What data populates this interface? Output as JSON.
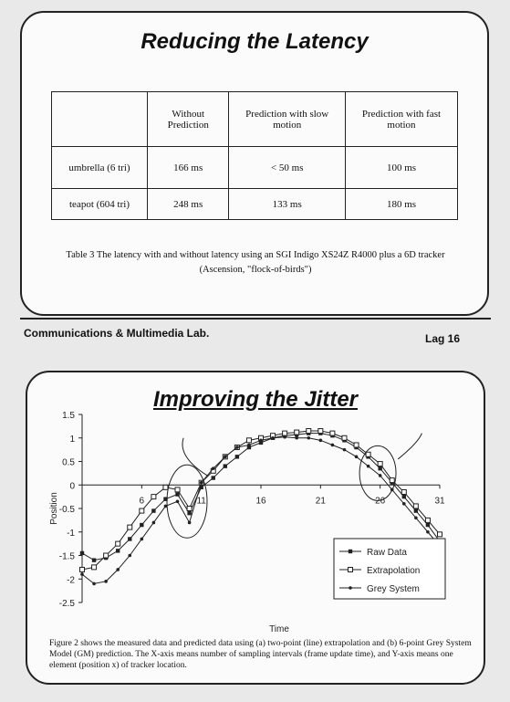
{
  "slide1": {
    "title": "Reducing the Latency",
    "table": {
      "headers": [
        "",
        "Without Prediction",
        "Prediction with slow motion",
        "Prediction with fast motion"
      ],
      "rows": [
        [
          "umbrella (6 tri)",
          "166 ms",
          "< 50 ms",
          "100 ms"
        ],
        [
          "teapot (604 tri)",
          "248 ms",
          "133 ms",
          "180 ms"
        ]
      ]
    },
    "caption": "Table 3 The latency with and without latency using an SGI Indigo XS24Z R4000 plus a 6D tracker (Ascension, \"flock-of-birds\")"
  },
  "footer": {
    "left": "Communications & Multimedia Lab.",
    "right": "Lag 16"
  },
  "slide2": {
    "title": "Improving the Jitter",
    "caption": "Figure 2 shows the measured data and predicted data using (a) two-point (line) extrapolation and (b) 6-point Grey System Model (GM) prediction. The X-axis means number of sampling intervals (frame update time), and Y-axis means one element (position x) of tracker location."
  },
  "chart_data": {
    "type": "line",
    "xlabel": "Time",
    "ylabel": "Position",
    "xlim": [
      1,
      31
    ],
    "ylim": [
      -2.5,
      1.5
    ],
    "xticks": [
      "6",
      "11",
      "16",
      "21",
      "26",
      "31"
    ],
    "yticks": [
      "1.5",
      "1",
      "0.5",
      "0",
      "-0.5",
      "-1",
      "-1.5",
      "-2",
      "-2.5"
    ],
    "legend_position": "bottom-right",
    "x": [
      1,
      2,
      3,
      4,
      5,
      6,
      7,
      8,
      9,
      10,
      11,
      12,
      13,
      14,
      15,
      16,
      17,
      18,
      19,
      20,
      21,
      22,
      23,
      24,
      25,
      26,
      27,
      28,
      29,
      30,
      31
    ],
    "series": [
      {
        "name": "Raw Data",
        "marker": "square-filled",
        "values": [
          -1.45,
          -1.6,
          -1.55,
          -1.4,
          -1.15,
          -0.85,
          -0.55,
          -0.3,
          -0.2,
          -0.6,
          -0.05,
          0.15,
          0.4,
          0.6,
          0.8,
          0.9,
          1.0,
          1.05,
          1.07,
          1.1,
          1.1,
          1.05,
          0.95,
          0.8,
          0.6,
          0.35,
          0.05,
          -0.25,
          -0.55,
          -0.85,
          -1.2
        ]
      },
      {
        "name": "Extrapolation",
        "marker": "square-open",
        "values": [
          -1.8,
          -1.75,
          -1.5,
          -1.25,
          -0.9,
          -0.55,
          -0.25,
          -0.05,
          -0.1,
          -0.5,
          0.05,
          0.3,
          0.6,
          0.8,
          0.95,
          1.0,
          1.05,
          1.1,
          1.12,
          1.15,
          1.15,
          1.1,
          1.0,
          0.85,
          0.65,
          0.45,
          0.1,
          -0.15,
          -0.45,
          -0.75,
          -1.05
        ]
      },
      {
        "name": "Grey System",
        "marker": "dot",
        "values": [
          -1.9,
          -2.1,
          -2.05,
          -1.8,
          -1.5,
          -1.15,
          -0.8,
          -0.45,
          -0.35,
          -0.8,
          0.05,
          0.35,
          0.6,
          0.8,
          0.85,
          0.95,
          1.0,
          1.02,
          1.0,
          1.0,
          0.95,
          0.85,
          0.75,
          0.6,
          0.4,
          0.2,
          -0.1,
          -0.4,
          -0.7,
          -1.0,
          -1.3
        ]
      }
    ]
  }
}
